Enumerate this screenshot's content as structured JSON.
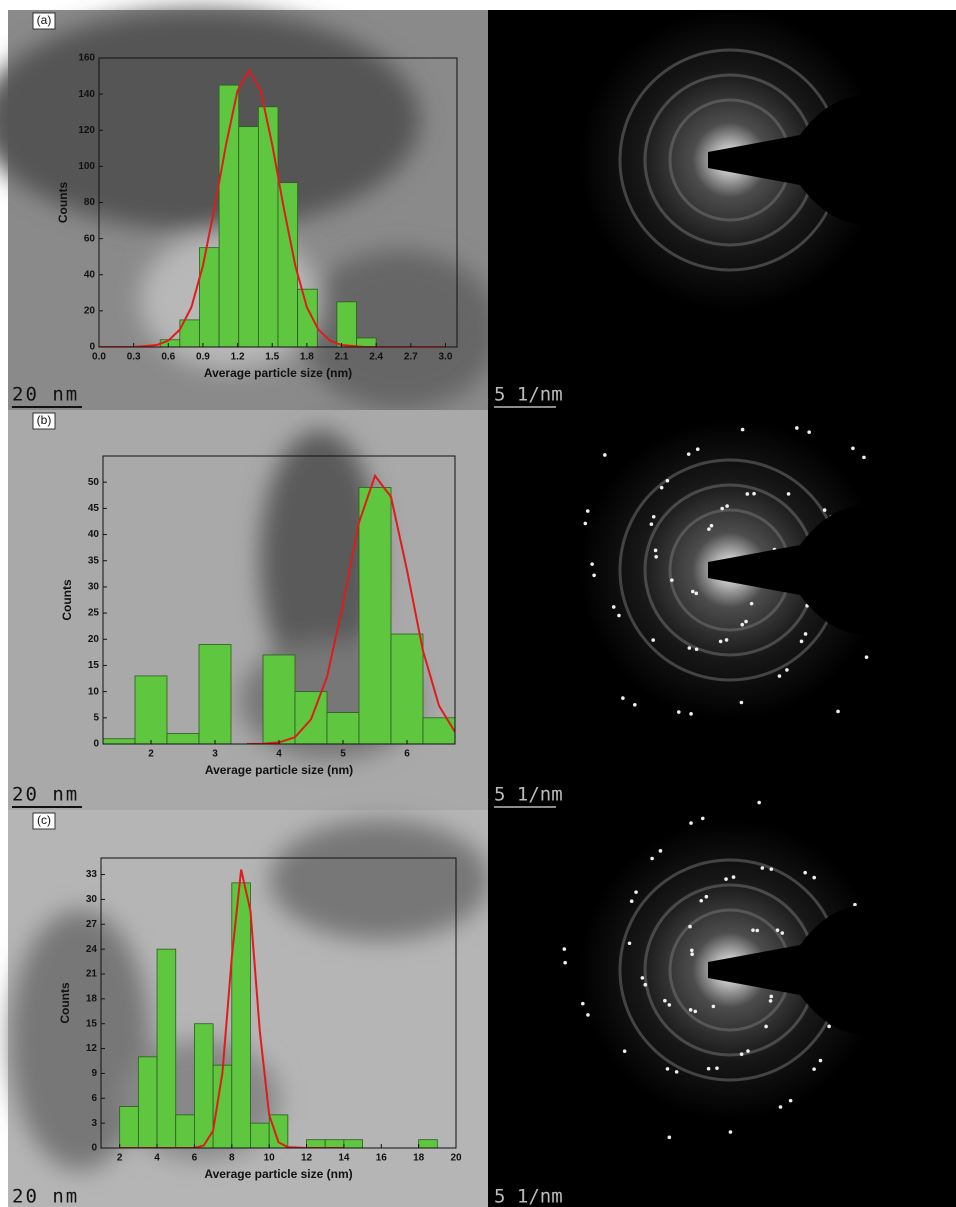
{
  "chart_data": [
    {
      "type": "histogram",
      "panel_label": "(a)",
      "xlabel": "Average particle size (nm)",
      "ylabel": "Counts",
      "bins": [
        0.53,
        0.7,
        0.87,
        1.04,
        1.21,
        1.38,
        1.55,
        1.72,
        1.89,
        2.06,
        2.23,
        2.4
      ],
      "counts": [
        4,
        15,
        55,
        145,
        122,
        133,
        91,
        32,
        0,
        25,
        5
      ],
      "color": "#5ec73f",
      "fit": {
        "type": "line",
        "color": "#e01b1b",
        "x": [
          0,
          0.3,
          0.5,
          0.6,
          0.7,
          0.8,
          0.9,
          1.0,
          1.1,
          1.2,
          1.3,
          1.4,
          1.5,
          1.6,
          1.7,
          1.8,
          1.9,
          2.0,
          2.1,
          2.3,
          2.6,
          3.0
        ],
        "values": [
          0,
          0,
          1.1,
          3.5,
          9.6,
          22,
          45,
          77,
          112,
          142,
          153,
          142,
          112,
          77,
          45,
          22,
          9.6,
          3.5,
          1.1,
          0,
          0,
          0
        ]
      },
      "xlim": [
        0,
        3.1
      ],
      "ylim": [
        0,
        160
      ],
      "xticks": [
        {
          "value": 0,
          "label": "0.0"
        },
        0.3,
        0.6,
        0.9,
        1.2,
        1.5,
        1.8,
        2.1,
        2.4,
        2.7,
        {
          "value": 3,
          "label": "3.0"
        }
      ],
      "yticks": [
        0,
        20,
        40,
        60,
        80,
        100,
        120,
        140,
        160
      ],
      "scale_bar": "20 nm",
      "diffraction_scale_bar": "5 1/nm"
    },
    {
      "type": "histogram",
      "panel_label": "(b)",
      "xlabel": "Average particle size (nm)",
      "ylabel": "Counts",
      "bins": [
        1.25,
        1.75,
        2.25,
        2.75,
        3.25,
        3.75,
        4.25,
        4.75,
        5.25,
        5.75,
        6.25,
        6.75
      ],
      "counts": [
        1,
        13,
        2,
        19,
        0,
        17,
        10,
        6,
        49,
        21,
        5
      ],
      "color": "#5ec73f",
      "fit": {
        "type": "line",
        "color": "#e01b1b",
        "x": [
          3.5,
          3.75,
          4.0,
          4.25,
          4.5,
          4.75,
          5.0,
          5.25,
          5.5,
          5.75,
          6.0,
          6.25,
          6.5,
          6.75
        ],
        "values": [
          0,
          0.05,
          0.3,
          1.3,
          4.7,
          12.8,
          26.7,
          42.3,
          51.2,
          47.2,
          33.2,
          17.8,
          7.3,
          2.3
        ]
      },
      "xlim": [
        1.25,
        6.75
      ],
      "ylim": [
        0,
        55
      ],
      "xticks": [
        2,
        3,
        4,
        5,
        6
      ],
      "yticks": [
        0,
        5,
        10,
        15,
        20,
        25,
        30,
        35,
        40,
        45,
        50
      ],
      "scale_bar": "20 nm",
      "diffraction_scale_bar": "5 1/nm"
    },
    {
      "type": "histogram",
      "panel_label": "(c)",
      "xlabel": "Average particle size (nm)",
      "ylabel": "Counts",
      "bins": [
        2,
        3,
        4,
        5,
        6,
        7,
        8,
        9,
        10,
        11,
        12,
        13,
        14,
        15,
        16,
        17,
        18,
        19
      ],
      "counts": [
        5,
        11,
        24,
        4,
        15,
        10,
        32,
        3,
        4,
        0,
        1,
        1,
        1,
        0,
        0,
        0,
        1
      ],
      "color": "#5ec73f",
      "fit": {
        "type": "line",
        "color": "#e01b1b",
        "x": [
          2,
          5,
          5.5,
          6,
          6.5,
          7,
          7.5,
          8,
          8.5,
          9,
          9.5,
          10,
          10.5,
          11,
          12,
          14
        ],
        "values": [
          0,
          0,
          0,
          0.02,
          0.3,
          2.1,
          9.1,
          23,
          33.6,
          28.6,
          14.1,
          4.0,
          0.7,
          0.1,
          0,
          0
        ]
      },
      "xlim": [
        1,
        20
      ],
      "ylim": [
        0,
        35
      ],
      "xticks": [
        2,
        4,
        6,
        8,
        10,
        12,
        14,
        16,
        18,
        20
      ],
      "yticks": [
        0,
        3,
        6,
        9,
        12,
        15,
        18,
        21,
        24,
        27,
        30,
        33
      ],
      "scale_bar": "20 nm",
      "diffraction_scale_bar": "5 1/nm"
    }
  ]
}
